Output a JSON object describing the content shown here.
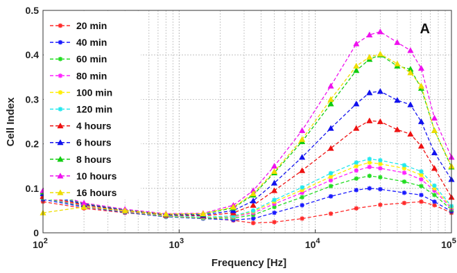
{
  "chart_data": {
    "type": "line",
    "title": "",
    "panel_label": "A",
    "xlabel": "Frequency [Hz]",
    "ylabel": "Cell Index",
    "x_scale": "log",
    "xlim": [
      100,
      100000
    ],
    "ylim": [
      0,
      0.5
    ],
    "x_ticks": [
      {
        "value": 100,
        "base": "10",
        "exp": "2"
      },
      {
        "value": 1000,
        "base": "10",
        "exp": "3"
      },
      {
        "value": 10000,
        "base": "10",
        "exp": "4"
      },
      {
        "value": 100000,
        "base": "10",
        "exp": "5"
      }
    ],
    "y_ticks": [
      "0",
      "0.1",
      "0.2",
      "0.3",
      "0.4",
      "0.5"
    ],
    "grid": true,
    "legend_position": "top-left",
    "series": [
      {
        "name": "20 min",
        "color": "#ff2a2a",
        "marker": "star",
        "points": [
          [
            100,
            0.07
          ],
          [
            200,
            0.055
          ],
          [
            400,
            0.045
          ],
          [
            800,
            0.037
          ],
          [
            1500,
            0.033
          ],
          [
            2500,
            0.028
          ],
          [
            3500,
            0.022
          ],
          [
            5000,
            0.024
          ],
          [
            8000,
            0.032
          ],
          [
            13000,
            0.043
          ],
          [
            20000,
            0.055
          ],
          [
            30000,
            0.063
          ],
          [
            45000,
            0.067
          ],
          [
            60000,
            0.07
          ],
          [
            75000,
            0.062
          ],
          [
            100000,
            0.045
          ]
        ]
      },
      {
        "name": "40 min",
        "color": "#1a1aff",
        "marker": "star",
        "points": [
          [
            100,
            0.075
          ],
          [
            200,
            0.058
          ],
          [
            400,
            0.046
          ],
          [
            800,
            0.036
          ],
          [
            1500,
            0.032
          ],
          [
            2500,
            0.029
          ],
          [
            3500,
            0.032
          ],
          [
            5000,
            0.045
          ],
          [
            8000,
            0.062
          ],
          [
            13000,
            0.082
          ],
          [
            20000,
            0.096
          ],
          [
            25000,
            0.1
          ],
          [
            30000,
            0.098
          ],
          [
            45000,
            0.09
          ],
          [
            60000,
            0.085
          ],
          [
            75000,
            0.07
          ],
          [
            100000,
            0.048
          ]
        ]
      },
      {
        "name": "60 min",
        "color": "#22dd22",
        "marker": "star",
        "points": [
          [
            100,
            0.078
          ],
          [
            200,
            0.06
          ],
          [
            400,
            0.047
          ],
          [
            800,
            0.037
          ],
          [
            1500,
            0.033
          ],
          [
            2500,
            0.033
          ],
          [
            3500,
            0.04
          ],
          [
            5000,
            0.058
          ],
          [
            8000,
            0.08
          ],
          [
            13000,
            0.105
          ],
          [
            20000,
            0.122
          ],
          [
            25000,
            0.128
          ],
          [
            30000,
            0.125
          ],
          [
            45000,
            0.115
          ],
          [
            60000,
            0.105
          ],
          [
            75000,
            0.085
          ],
          [
            100000,
            0.052
          ]
        ]
      },
      {
        "name": "80 min",
        "color": "#ff22ff",
        "marker": "star",
        "points": [
          [
            100,
            0.08
          ],
          [
            200,
            0.061
          ],
          [
            400,
            0.048
          ],
          [
            800,
            0.038
          ],
          [
            1500,
            0.034
          ],
          [
            2500,
            0.036
          ],
          [
            3500,
            0.045
          ],
          [
            5000,
            0.065
          ],
          [
            8000,
            0.09
          ],
          [
            13000,
            0.118
          ],
          [
            20000,
            0.14
          ],
          [
            25000,
            0.148
          ],
          [
            30000,
            0.145
          ],
          [
            45000,
            0.135
          ],
          [
            60000,
            0.12
          ],
          [
            75000,
            0.095
          ],
          [
            100000,
            0.055
          ]
        ]
      },
      {
        "name": "100 min",
        "color": "#ffee00",
        "marker": "star",
        "points": [
          [
            100,
            0.082
          ],
          [
            200,
            0.062
          ],
          [
            400,
            0.049
          ],
          [
            800,
            0.038
          ],
          [
            1500,
            0.034
          ],
          [
            2500,
            0.037
          ],
          [
            3500,
            0.048
          ],
          [
            5000,
            0.07
          ],
          [
            8000,
            0.096
          ],
          [
            13000,
            0.126
          ],
          [
            20000,
            0.15
          ],
          [
            25000,
            0.158
          ],
          [
            30000,
            0.155
          ],
          [
            45000,
            0.145
          ],
          [
            60000,
            0.13
          ],
          [
            75000,
            0.1
          ],
          [
            100000,
            0.058
          ]
        ]
      },
      {
        "name": "120 min",
        "color": "#22e8ee",
        "marker": "star",
        "points": [
          [
            100,
            0.085
          ],
          [
            200,
            0.063
          ],
          [
            400,
            0.05
          ],
          [
            800,
            0.039
          ],
          [
            1500,
            0.035
          ],
          [
            2500,
            0.038
          ],
          [
            3500,
            0.05
          ],
          [
            5000,
            0.074
          ],
          [
            8000,
            0.102
          ],
          [
            13000,
            0.134
          ],
          [
            20000,
            0.158
          ],
          [
            25000,
            0.166
          ],
          [
            30000,
            0.163
          ],
          [
            45000,
            0.152
          ],
          [
            60000,
            0.138
          ],
          [
            75000,
            0.106
          ],
          [
            100000,
            0.06
          ]
        ]
      },
      {
        "name": "4 hours",
        "color": "#ee1111",
        "marker": "triangle",
        "points": [
          [
            100,
            0.082
          ],
          [
            200,
            0.063
          ],
          [
            400,
            0.05
          ],
          [
            800,
            0.04
          ],
          [
            1500,
            0.038
          ],
          [
            2500,
            0.045
          ],
          [
            3500,
            0.062
          ],
          [
            5000,
            0.095
          ],
          [
            8000,
            0.14
          ],
          [
            13000,
            0.19
          ],
          [
            20000,
            0.235
          ],
          [
            25000,
            0.252
          ],
          [
            30000,
            0.25
          ],
          [
            40000,
            0.232
          ],
          [
            50000,
            0.222
          ],
          [
            60000,
            0.195
          ],
          [
            75000,
            0.145
          ],
          [
            100000,
            0.08
          ]
        ]
      },
      {
        "name": "6 hours",
        "color": "#1111ee",
        "marker": "triangle",
        "points": [
          [
            100,
            0.088
          ],
          [
            200,
            0.064
          ],
          [
            400,
            0.051
          ],
          [
            800,
            0.041
          ],
          [
            1500,
            0.04
          ],
          [
            2500,
            0.05
          ],
          [
            3500,
            0.072
          ],
          [
            5000,
            0.112
          ],
          [
            8000,
            0.17
          ],
          [
            13000,
            0.235
          ],
          [
            20000,
            0.29
          ],
          [
            25000,
            0.315
          ],
          [
            30000,
            0.318
          ],
          [
            40000,
            0.298
          ],
          [
            50000,
            0.288
          ],
          [
            60000,
            0.25
          ],
          [
            75000,
            0.18
          ],
          [
            100000,
            0.12
          ]
        ]
      },
      {
        "name": "8 hours",
        "color": "#11cc11",
        "marker": "triangle",
        "points": [
          [
            100,
            0.092
          ],
          [
            200,
            0.066
          ],
          [
            400,
            0.052
          ],
          [
            800,
            0.042
          ],
          [
            1500,
            0.042
          ],
          [
            2500,
            0.056
          ],
          [
            3500,
            0.085
          ],
          [
            5000,
            0.135
          ],
          [
            8000,
            0.205
          ],
          [
            13000,
            0.29
          ],
          [
            20000,
            0.365
          ],
          [
            25000,
            0.39
          ],
          [
            30000,
            0.4
          ],
          [
            40000,
            0.375
          ],
          [
            50000,
            0.368
          ],
          [
            60000,
            0.325
          ],
          [
            75000,
            0.23
          ],
          [
            100000,
            0.148
          ]
        ]
      },
      {
        "name": "10 hours",
        "color": "#ee11ee",
        "marker": "triangle",
        "points": [
          [
            100,
            0.095
          ],
          [
            200,
            0.067
          ],
          [
            400,
            0.053
          ],
          [
            800,
            0.043
          ],
          [
            1500,
            0.044
          ],
          [
            2500,
            0.062
          ],
          [
            3500,
            0.095
          ],
          [
            5000,
            0.15
          ],
          [
            8000,
            0.23
          ],
          [
            13000,
            0.33
          ],
          [
            20000,
            0.425
          ],
          [
            25000,
            0.445
          ],
          [
            30000,
            0.452
          ],
          [
            40000,
            0.428
          ],
          [
            50000,
            0.41
          ],
          [
            60000,
            0.37
          ],
          [
            75000,
            0.258
          ],
          [
            100000,
            0.17
          ]
        ]
      },
      {
        "name": "16 hours",
        "color": "#eedd00",
        "marker": "triangle",
        "points": [
          [
            100,
            0.045
          ],
          [
            200,
            0.058
          ],
          [
            400,
            0.05
          ],
          [
            800,
            0.042
          ],
          [
            1500,
            0.043
          ],
          [
            2500,
            0.058
          ],
          [
            3500,
            0.088
          ],
          [
            5000,
            0.138
          ],
          [
            8000,
            0.21
          ],
          [
            13000,
            0.3
          ],
          [
            20000,
            0.375
          ],
          [
            25000,
            0.395
          ],
          [
            30000,
            0.402
          ],
          [
            40000,
            0.38
          ],
          [
            50000,
            0.36
          ],
          [
            60000,
            0.33
          ],
          [
            75000,
            0.23
          ],
          [
            100000,
            0.15
          ]
        ]
      }
    ]
  }
}
